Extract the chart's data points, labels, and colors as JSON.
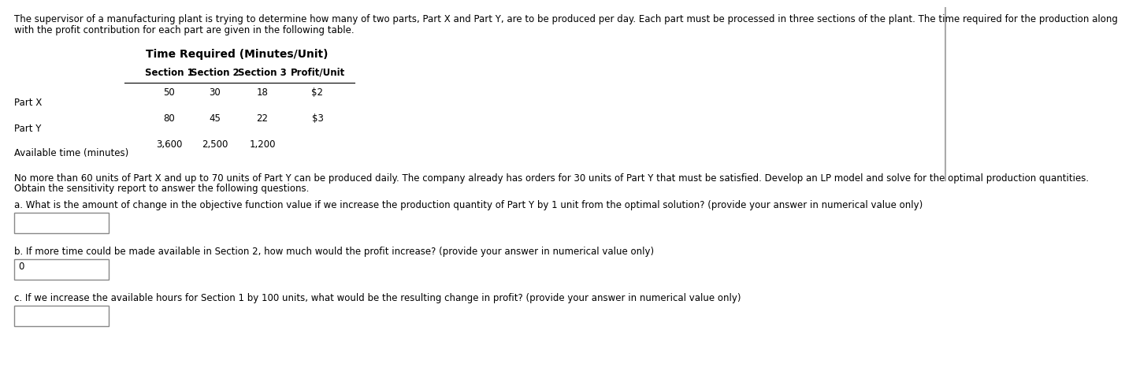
{
  "intro_line1": "The supervisor of a manufacturing plant is trying to determine how many of two parts, Part X and Part Y, are to be produced per day. Each part must be processed in three sections of the plant. The time required for the production along",
  "intro_line2": "with the profit contribution for each part are given in the following table.",
  "table_title": "Time Required (Minutes/Unit)",
  "col_headers": [
    "Section 1",
    "Section 2",
    "Section 3",
    "Profit/Unit"
  ],
  "row_labels": [
    "Part X",
    "Part Y",
    "Available time (minutes)"
  ],
  "table_data": [
    [
      "50",
      "30",
      "18",
      "$2"
    ],
    [
      "80",
      "45",
      "22",
      "$3"
    ],
    [
      "3,600",
      "2,500",
      "1,200",
      ""
    ]
  ],
  "body_line1": "No more than 60 units of Part X and up to 70 units of Part Y can be produced daily. The company already has orders for 30 units of Part Y that must be satisfied. Develop an LP model and solve for the optimal production quantities.",
  "body_line2": "Obtain the sensitivity report to answer the following questions.",
  "question_a": "a. What is the amount of change in the objective function value if we increase the production quantity of Part Y by 1 unit from the optimal solution? (provide your answer in numerical value only)",
  "question_b": "b. If more time could be made available in Section 2, how much would the profit increase? (provide your answer in numerical value only)",
  "question_c": "c. If we increase the available hours for Section 1 by 100 units, what would be the resulting change in profit? (provide your answer in numerical value only)",
  "answer_b_prefill": "0",
  "bg_color": "#ffffff",
  "text_color": "#000000",
  "box_color": "#ffffff",
  "box_edge_color": "#888888",
  "line_color": "#000000",
  "right_border_color": "#aaaaaa"
}
